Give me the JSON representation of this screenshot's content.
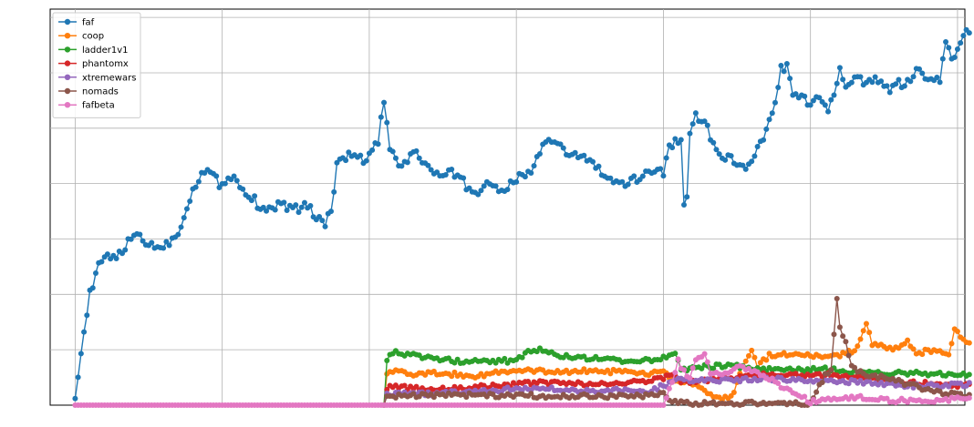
{
  "chart_data": {
    "type": "line",
    "title": "",
    "xlabel": "",
    "ylabel": "",
    "grid": true,
    "legend_position": "top-left",
    "xlim": [
      -17,
      605
    ],
    "ylim": [
      0,
      715
    ],
    "series": [
      {
        "name": "faf",
        "color": "#1f77b4",
        "start": 0,
        "anchors": [
          [
            0,
            20
          ],
          [
            4,
            95
          ],
          [
            10,
            200
          ],
          [
            16,
            250
          ],
          [
            22,
            270
          ],
          [
            30,
            270
          ],
          [
            38,
            300
          ],
          [
            42,
            310
          ],
          [
            48,
            295
          ],
          [
            54,
            285
          ],
          [
            62,
            290
          ],
          [
            70,
            310
          ],
          [
            76,
            360
          ],
          [
            82,
            400
          ],
          [
            86,
            420
          ],
          [
            92,
            420
          ],
          [
            98,
            400
          ],
          [
            104,
            410
          ],
          [
            110,
            410
          ],
          [
            116,
            380
          ],
          [
            122,
            370
          ],
          [
            128,
            350
          ],
          [
            134,
            355
          ],
          [
            140,
            365
          ],
          [
            146,
            355
          ],
          [
            152,
            355
          ],
          [
            158,
            360
          ],
          [
            164,
            340
          ],
          [
            170,
            330
          ],
          [
            174,
            350
          ],
          [
            178,
            430
          ],
          [
            184,
            450
          ],
          [
            190,
            450
          ],
          [
            196,
            440
          ],
          [
            202,
            460
          ],
          [
            206,
            475
          ],
          [
            210,
            550
          ],
          [
            214,
            460
          ],
          [
            220,
            430
          ],
          [
            226,
            445
          ],
          [
            232,
            455
          ],
          [
            238,
            435
          ],
          [
            244,
            420
          ],
          [
            250,
            410
          ],
          [
            256,
            420
          ],
          [
            262,
            410
          ],
          [
            268,
            390
          ],
          [
            274,
            380
          ],
          [
            280,
            405
          ],
          [
            286,
            395
          ],
          [
            292,
            380
          ],
          [
            298,
            405
          ],
          [
            304,
            415
          ],
          [
            310,
            420
          ],
          [
            316,
            460
          ],
          [
            322,
            475
          ],
          [
            328,
            470
          ],
          [
            334,
            455
          ],
          [
            340,
            450
          ],
          [
            346,
            450
          ],
          [
            352,
            435
          ],
          [
            358,
            420
          ],
          [
            364,
            405
          ],
          [
            370,
            395
          ],
          [
            376,
            400
          ],
          [
            382,
            410
          ],
          [
            388,
            420
          ],
          [
            394,
            425
          ],
          [
            400,
            420
          ],
          [
            404,
            470
          ],
          [
            408,
            475
          ],
          [
            412,
            475
          ],
          [
            415,
            310
          ],
          [
            418,
            490
          ],
          [
            422,
            530
          ],
          [
            426,
            510
          ],
          [
            430,
            500
          ],
          [
            434,
            470
          ],
          [
            438,
            450
          ],
          [
            442,
            450
          ],
          [
            446,
            445
          ],
          [
            450,
            430
          ],
          [
            456,
            430
          ],
          [
            462,
            450
          ],
          [
            468,
            480
          ],
          [
            472,
            510
          ],
          [
            476,
            545
          ],
          [
            480,
            610
          ],
          [
            484,
            610
          ],
          [
            488,
            560
          ],
          [
            492,
            555
          ],
          [
            496,
            550
          ],
          [
            500,
            540
          ],
          [
            504,
            560
          ],
          [
            508,
            540
          ],
          [
            512,
            530
          ],
          [
            516,
            560
          ],
          [
            520,
            610
          ],
          [
            524,
            570
          ],
          [
            528,
            590
          ],
          [
            532,
            600
          ],
          [
            536,
            580
          ],
          [
            540,
            590
          ],
          [
            544,
            590
          ],
          [
            548,
            580
          ],
          [
            552,
            570
          ],
          [
            556,
            575
          ],
          [
            560,
            580
          ],
          [
            564,
            570
          ],
          [
            568,
            590
          ],
          [
            572,
            610
          ],
          [
            576,
            600
          ],
          [
            580,
            590
          ],
          [
            584,
            590
          ],
          [
            588,
            580
          ],
          [
            592,
            660
          ],
          [
            596,
            620
          ],
          [
            600,
            640
          ],
          [
            604,
            670
          ],
          [
            606,
            680
          ],
          [
            608,
            670
          ]
        ]
      },
      {
        "name": "coop",
        "color": "#ff7f0e",
        "start": 210,
        "anchors": [
          [
            210,
            0
          ],
          [
            212,
            60
          ],
          [
            218,
            60
          ],
          [
            230,
            55
          ],
          [
            250,
            58
          ],
          [
            270,
            52
          ],
          [
            290,
            60
          ],
          [
            310,
            62
          ],
          [
            330,
            60
          ],
          [
            350,
            62
          ],
          [
            370,
            60
          ],
          [
            390,
            56
          ],
          [
            400,
            60
          ],
          [
            408,
            45
          ],
          [
            420,
            40
          ],
          [
            430,
            20
          ],
          [
            440,
            10
          ],
          [
            448,
            20
          ],
          [
            452,
            60
          ],
          [
            456,
            80
          ],
          [
            460,
            100
          ],
          [
            464,
            70
          ],
          [
            468,
            80
          ],
          [
            472,
            90
          ],
          [
            480,
            90
          ],
          [
            490,
            95
          ],
          [
            500,
            90
          ],
          [
            510,
            85
          ],
          [
            520,
            90
          ],
          [
            530,
            100
          ],
          [
            534,
            120
          ],
          [
            538,
            150
          ],
          [
            542,
            110
          ],
          [
            550,
            105
          ],
          [
            560,
            100
          ],
          [
            566,
            120
          ],
          [
            572,
            90
          ],
          [
            580,
            100
          ],
          [
            590,
            95
          ],
          [
            594,
            90
          ],
          [
            598,
            140
          ],
          [
            602,
            120
          ],
          [
            606,
            110
          ],
          [
            608,
            115
          ]
        ]
      },
      {
        "name": "ladder1v1",
        "color": "#2ca02c",
        "start": 210,
        "anchors": [
          [
            210,
            0
          ],
          [
            212,
            80
          ],
          [
            216,
            95
          ],
          [
            230,
            90
          ],
          [
            250,
            82
          ],
          [
            270,
            78
          ],
          [
            290,
            80
          ],
          [
            300,
            80
          ],
          [
            308,
            95
          ],
          [
            316,
            100
          ],
          [
            330,
            90
          ],
          [
            350,
            85
          ],
          [
            370,
            80
          ],
          [
            390,
            82
          ],
          [
            400,
            85
          ],
          [
            408,
            90
          ],
          [
            412,
            65
          ],
          [
            430,
            70
          ],
          [
            450,
            70
          ],
          [
            470,
            65
          ],
          [
            490,
            63
          ],
          [
            510,
            65
          ],
          [
            530,
            60
          ],
          [
            550,
            58
          ],
          [
            570,
            58
          ],
          [
            590,
            55
          ],
          [
            600,
            56
          ],
          [
            608,
            55
          ]
        ]
      },
      {
        "name": "phantomx",
        "color": "#d62728",
        "start": 210,
        "anchors": [
          [
            210,
            0
          ],
          [
            212,
            30
          ],
          [
            216,
            35
          ],
          [
            230,
            30
          ],
          [
            250,
            30
          ],
          [
            270,
            32
          ],
          [
            290,
            35
          ],
          [
            310,
            40
          ],
          [
            330,
            40
          ],
          [
            350,
            38
          ],
          [
            370,
            38
          ],
          [
            390,
            45
          ],
          [
            400,
            50
          ],
          [
            408,
            55
          ],
          [
            412,
            40
          ],
          [
            430,
            45
          ],
          [
            450,
            50
          ],
          [
            470,
            55
          ],
          [
            490,
            55
          ],
          [
            510,
            55
          ],
          [
            530,
            50
          ],
          [
            550,
            45
          ],
          [
            570,
            40
          ],
          [
            590,
            38
          ],
          [
            608,
            35
          ]
        ]
      },
      {
        "name": "xtremewars",
        "color": "#9467bd",
        "start": 210,
        "anchors": [
          [
            210,
            0
          ],
          [
            212,
            20
          ],
          [
            230,
            20
          ],
          [
            250,
            22
          ],
          [
            270,
            25
          ],
          [
            290,
            28
          ],
          [
            310,
            30
          ],
          [
            330,
            28
          ],
          [
            350,
            26
          ],
          [
            370,
            28
          ],
          [
            390,
            25
          ],
          [
            400,
            35
          ],
          [
            410,
            45
          ],
          [
            430,
            45
          ],
          [
            450,
            45
          ],
          [
            470,
            48
          ],
          [
            490,
            45
          ],
          [
            510,
            45
          ],
          [
            530,
            42
          ],
          [
            550,
            38
          ],
          [
            570,
            35
          ],
          [
            590,
            35
          ],
          [
            608,
            38
          ]
        ]
      },
      {
        "name": "nomads",
        "color": "#8c564b",
        "start": 210,
        "anchors": [
          [
            210,
            0
          ],
          [
            212,
            15
          ],
          [
            230,
            17
          ],
          [
            250,
            18
          ],
          [
            270,
            18
          ],
          [
            290,
            17
          ],
          [
            310,
            17
          ],
          [
            330,
            16
          ],
          [
            350,
            17
          ],
          [
            370,
            16
          ],
          [
            390,
            17
          ],
          [
            400,
            20
          ],
          [
            406,
            5
          ],
          [
            420,
            3
          ],
          [
            440,
            3
          ],
          [
            460,
            3
          ],
          [
            480,
            3
          ],
          [
            500,
            3
          ],
          [
            510,
            55
          ],
          [
            514,
            60
          ],
          [
            518,
            195
          ],
          [
            520,
            140
          ],
          [
            524,
            115
          ],
          [
            528,
            70
          ],
          [
            536,
            55
          ],
          [
            550,
            50
          ],
          [
            570,
            35
          ],
          [
            590,
            22
          ],
          [
            608,
            15
          ]
        ]
      },
      {
        "name": "fafbeta",
        "color": "#e377c2",
        "start": 0,
        "anchors": [
          [
            0,
            0
          ],
          [
            100,
            0
          ],
          [
            200,
            0
          ],
          [
            300,
            0
          ],
          [
            400,
            0
          ],
          [
            406,
            40
          ],
          [
            410,
            80
          ],
          [
            414,
            60
          ],
          [
            418,
            50
          ],
          [
            422,
            80
          ],
          [
            428,
            95
          ],
          [
            432,
            60
          ],
          [
            438,
            55
          ],
          [
            444,
            60
          ],
          [
            450,
            70
          ],
          [
            456,
            65
          ],
          [
            462,
            60
          ],
          [
            468,
            55
          ],
          [
            474,
            45
          ],
          [
            480,
            35
          ],
          [
            486,
            25
          ],
          [
            490,
            20
          ],
          [
            496,
            12
          ],
          [
            500,
            5
          ],
          [
            506,
            8
          ],
          [
            512,
            10
          ],
          [
            518,
            10
          ],
          [
            524,
            12
          ],
          [
            530,
            15
          ],
          [
            540,
            12
          ],
          [
            550,
            10
          ],
          [
            560,
            8
          ],
          [
            570,
            10
          ],
          [
            580,
            8
          ],
          [
            590,
            10
          ],
          [
            600,
            12
          ],
          [
            608,
            14
          ]
        ]
      }
    ]
  }
}
